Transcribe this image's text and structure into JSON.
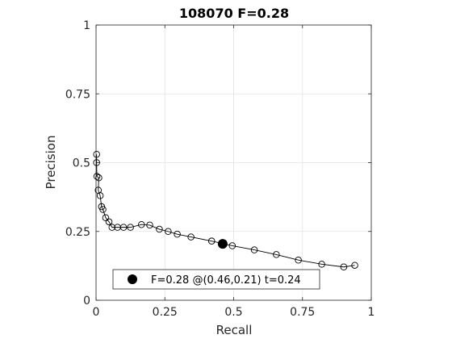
{
  "chart_data": {
    "type": "scatter",
    "title": "108070 F=0.28",
    "xlabel": "Recall",
    "ylabel": "Precision",
    "xlim": [
      0,
      1
    ],
    "ylim": [
      0,
      1
    ],
    "grid": true,
    "legend_position": "bottom",
    "x_ticks": [
      {
        "value": 0,
        "label": "0"
      },
      {
        "value": 0.25,
        "label": "0.25"
      },
      {
        "value": 0.5,
        "label": "0.5"
      },
      {
        "value": 0.75,
        "label": "0.75"
      },
      {
        "value": 1,
        "label": "1"
      }
    ],
    "y_ticks": [
      {
        "value": 0,
        "label": "0"
      },
      {
        "value": 0.25,
        "label": "0.25"
      },
      {
        "value": 0.5,
        "label": "0.5"
      },
      {
        "value": 0.75,
        "label": "0.75"
      },
      {
        "value": 1,
        "label": "1"
      }
    ],
    "series": [
      {
        "color": "#000000",
        "marker": "open-circle",
        "line": true,
        "points": [
          {
            "x": 0.002,
            "y": 0.53
          },
          {
            "x": 0.002,
            "y": 0.5
          },
          {
            "x": 0.003,
            "y": 0.45
          },
          {
            "x": 0.01,
            "y": 0.445
          },
          {
            "x": 0.008,
            "y": 0.4
          },
          {
            "x": 0.015,
            "y": 0.38
          },
          {
            "x": 0.02,
            "y": 0.34
          },
          {
            "x": 0.025,
            "y": 0.33
          },
          {
            "x": 0.035,
            "y": 0.3
          },
          {
            "x": 0.047,
            "y": 0.285
          },
          {
            "x": 0.058,
            "y": 0.265
          },
          {
            "x": 0.078,
            "y": 0.265
          },
          {
            "x": 0.1,
            "y": 0.265
          },
          {
            "x": 0.125,
            "y": 0.265
          },
          {
            "x": 0.165,
            "y": 0.275
          },
          {
            "x": 0.195,
            "y": 0.273
          },
          {
            "x": 0.23,
            "y": 0.258
          },
          {
            "x": 0.262,
            "y": 0.25
          },
          {
            "x": 0.295,
            "y": 0.24
          },
          {
            "x": 0.345,
            "y": 0.23
          },
          {
            "x": 0.42,
            "y": 0.215
          },
          {
            "x": 0.495,
            "y": 0.198
          },
          {
            "x": 0.575,
            "y": 0.183
          },
          {
            "x": 0.655,
            "y": 0.166
          },
          {
            "x": 0.735,
            "y": 0.146
          },
          {
            "x": 0.82,
            "y": 0.131
          },
          {
            "x": 0.9,
            "y": 0.121
          },
          {
            "x": 0.94,
            "y": 0.127
          }
        ]
      }
    ],
    "best_point": {
      "x": 0.46,
      "y": 0.205,
      "color": "#000000"
    },
    "legend": {
      "label": "F=0.28 @(0.46,0.21) t=0.24"
    }
  }
}
